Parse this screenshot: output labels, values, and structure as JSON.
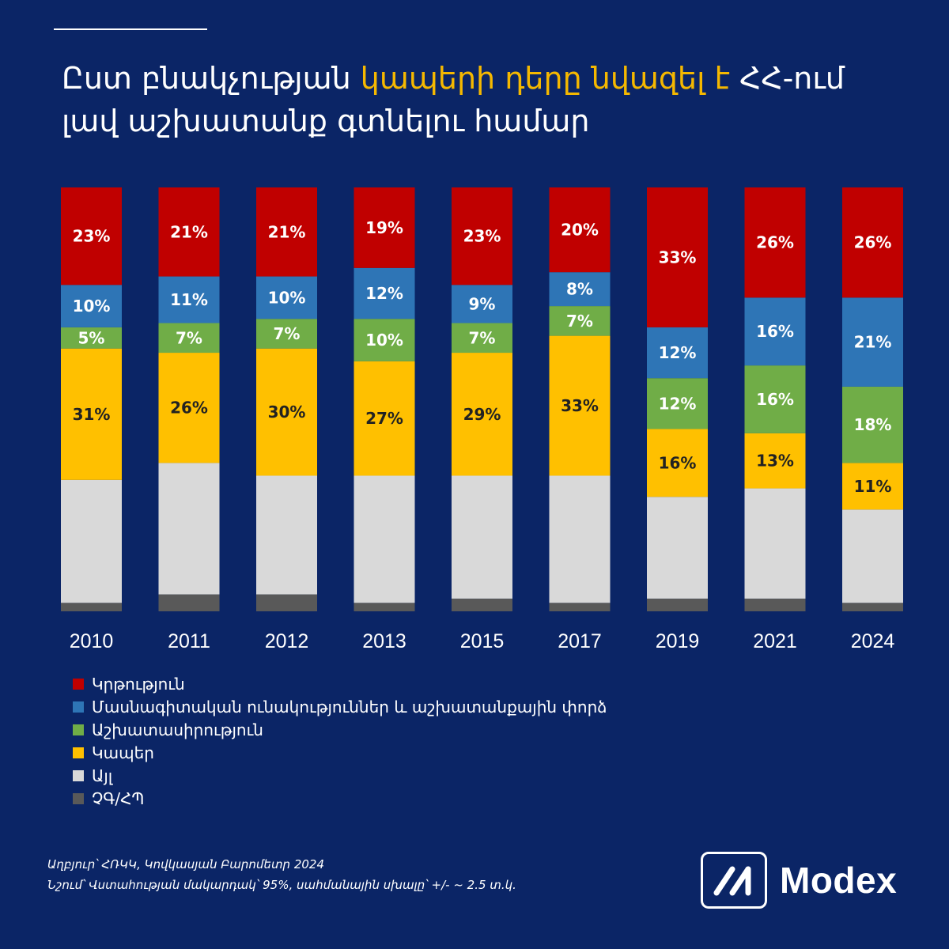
{
  "title": {
    "part1": "Ըստ բնակչության ",
    "highlight": "կապերի դերը նվազել է",
    "part2": " ՀՀ-ում լավ աշխատանք գտնելու համար"
  },
  "colors": {
    "background": "#0b2566",
    "highlight": "#f5b800",
    "education": "#c00000",
    "skills": "#2e75b6",
    "diligence": "#70ad47",
    "connections": "#ffc000",
    "other": "#d9d9d9",
    "dk_ra": "#595959"
  },
  "chart_data": {
    "type": "bar",
    "stacked": true,
    "normalized": true,
    "categories": [
      "2010",
      "2011",
      "2012",
      "2013",
      "2015",
      "2017",
      "2019",
      "2021",
      "2024"
    ],
    "series": [
      {
        "key": "dk_ra",
        "name": "ՉԳ/ՀՊ",
        "color": "#595959",
        "values": [
          2,
          4,
          4,
          2,
          3,
          2,
          3,
          3,
          2
        ],
        "labeled": false
      },
      {
        "key": "other",
        "name": "Այլ",
        "color": "#d9d9d9",
        "values": [
          29,
          31,
          28,
          30,
          29,
          30,
          24,
          26,
          22
        ],
        "labeled": false
      },
      {
        "key": "connections",
        "name": "Կապեր",
        "color": "#ffc000",
        "values": [
          31,
          26,
          30,
          27,
          29,
          33,
          16,
          13,
          11
        ],
        "labeled": true
      },
      {
        "key": "diligence",
        "name": "Աշխատասիրություն",
        "color": "#70ad47",
        "values": [
          5,
          7,
          7,
          10,
          7,
          7,
          12,
          16,
          18
        ],
        "labeled": true
      },
      {
        "key": "skills",
        "name": "Մասնագիտական ունակություններ և աշխատանքային փորձ",
        "color": "#2e75b6",
        "values": [
          10,
          11,
          10,
          12,
          9,
          8,
          12,
          16,
          21
        ],
        "labeled": true
      },
      {
        "key": "education",
        "name": "Կրթություն",
        "color": "#c00000",
        "values": [
          23,
          21,
          21,
          19,
          23,
          20,
          33,
          26,
          26
        ],
        "labeled": true
      }
    ],
    "legend_order": [
      "education",
      "skills",
      "diligence",
      "connections",
      "other",
      "dk_ra"
    ],
    "legend_position": "bottom-left",
    "grid": false
  },
  "footnote": {
    "source": "Աղբյուր՝ ՀՌԿԿ, Կովկասյան Բարոմետր 2024",
    "note": "Նշում՝ Վստահության մակարդակ՝ 95%, սահմանային սխալը՝ +/- ~ 2.5 տ.կ."
  },
  "logo": {
    "text": "Modex"
  }
}
